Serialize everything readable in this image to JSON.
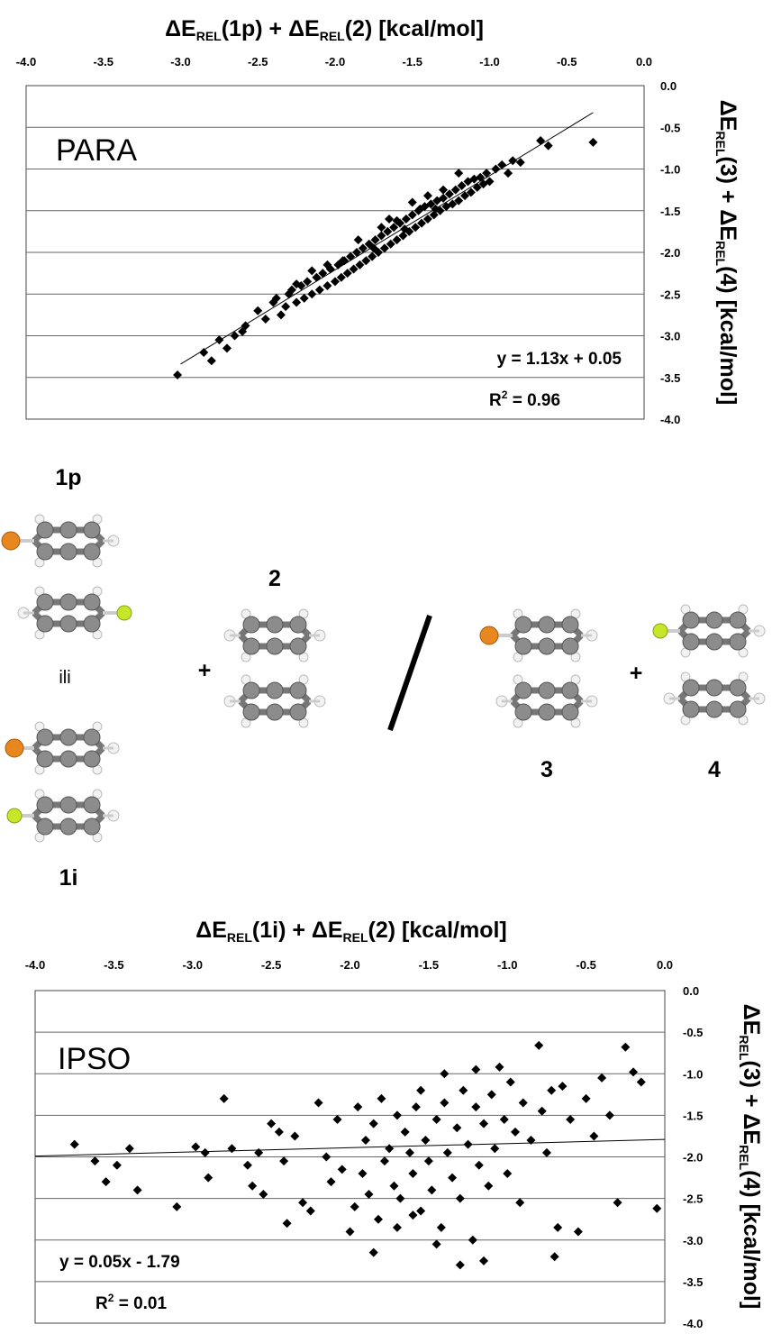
{
  "charts": [
    {
      "id": "para",
      "panel_label": "PARA",
      "xlabel": {
        "pre": "ΔE",
        "sub": "REL",
        "arg": "(1p) + ",
        "pre2": "ΔE",
        "sub2": "REL",
        "arg2": "(2) [kcal/mol]"
      },
      "ylabel": {
        "pre": "ΔE",
        "sub": "REL",
        "arg": "(3) + ",
        "pre2": "ΔE",
        "sub2": "REL",
        "arg2": "(4) [kcal/mol]"
      },
      "equation": "y = 1.13x + 0.05",
      "r2": {
        "base": "R",
        "sup": "2",
        "rest": " = 0.96"
      },
      "x_ticks": [
        "-4.0",
        "-3.5",
        "-3.0",
        "-2.5",
        "-2.0",
        "-1.5",
        "-1.0",
        "-0.5",
        "0.0"
      ],
      "y_ticks": [
        "0.0",
        "-0.5",
        "-1.0",
        "-1.5",
        "-2.0",
        "-2.5",
        "-3.0",
        "-3.5",
        "-4.0"
      ]
    },
    {
      "id": "ipso",
      "panel_label": "IPSO",
      "xlabel": {
        "pre": "ΔE",
        "sub": "REL",
        "arg": "(1i) + ",
        "pre2": "ΔE",
        "sub2": "REL",
        "arg2": "(2) [kcal/mol]"
      },
      "ylabel": {
        "pre": "ΔE",
        "sub": "REL",
        "arg": "(3) + ",
        "pre2": "ΔE",
        "sub2": "REL",
        "arg2": "(4) [kcal/mol]"
      },
      "equation": "y = 0.05x - 1.79",
      "r2": {
        "base": "R",
        "sup": "2",
        "rest": " = 0.01"
      },
      "x_ticks": [
        "-4.0",
        "-3.5",
        "-3.0",
        "-2.5",
        "-2.0",
        "-1.5",
        "-1.0",
        "-0.5",
        "0.0"
      ],
      "y_ticks": [
        "0.0",
        "-0.5",
        "-1.0",
        "-1.5",
        "-2.0",
        "-2.5",
        "-3.0",
        "-3.5",
        "-4.0"
      ]
    }
  ],
  "chart_data": [
    {
      "type": "scatter",
      "title": "",
      "xlabel": "ΔE_REL(1p) + ΔE_REL(2) [kcal/mol]",
      "ylabel": "ΔE_REL(3) + ΔE_REL(4) [kcal/mol]",
      "xlim": [
        -4.0,
        0.0
      ],
      "ylim": [
        -4.0,
        0.0
      ],
      "grid": "horizontal",
      "trendline": {
        "slope": 1.13,
        "intercept": 0.05,
        "x_range": [
          -3.0,
          -0.33
        ]
      },
      "points": [
        [
          -3.02,
          -3.47
        ],
        [
          -2.8,
          -3.3
        ],
        [
          -2.85,
          -3.2
        ],
        [
          -2.7,
          -3.15
        ],
        [
          -2.75,
          -3.05
        ],
        [
          -2.6,
          -2.95
        ],
        [
          -2.65,
          -3.0
        ],
        [
          -2.58,
          -2.88
        ],
        [
          -2.5,
          -2.7
        ],
        [
          -2.45,
          -2.8
        ],
        [
          -2.4,
          -2.6
        ],
        [
          -2.35,
          -2.75
        ],
        [
          -2.38,
          -2.55
        ],
        [
          -2.3,
          -2.5
        ],
        [
          -2.32,
          -2.65
        ],
        [
          -2.28,
          -2.45
        ],
        [
          -2.25,
          -2.6
        ],
        [
          -2.22,
          -2.4
        ],
        [
          -2.2,
          -2.55
        ],
        [
          -2.18,
          -2.35
        ],
        [
          -2.15,
          -2.5
        ],
        [
          -2.12,
          -2.3
        ],
        [
          -2.1,
          -2.45
        ],
        [
          -2.08,
          -2.25
        ],
        [
          -2.05,
          -2.4
        ],
        [
          -2.03,
          -2.2
        ],
        [
          -2.0,
          -2.35
        ],
        [
          -1.98,
          -2.15
        ],
        [
          -1.96,
          -2.3
        ],
        [
          -1.94,
          -2.1
        ],
        [
          -1.92,
          -2.25
        ],
        [
          -1.9,
          -2.05
        ],
        [
          -1.88,
          -2.2
        ],
        [
          -1.86,
          -2.0
        ],
        [
          -1.84,
          -2.15
        ],
        [
          -1.82,
          -1.95
        ],
        [
          -1.8,
          -2.1
        ],
        [
          -1.78,
          -1.9
        ],
        [
          -1.76,
          -2.05
        ],
        [
          -1.74,
          -1.85
        ],
        [
          -1.72,
          -2.0
        ],
        [
          -1.7,
          -1.8
        ],
        [
          -1.68,
          -1.95
        ],
        [
          -1.66,
          -1.75
        ],
        [
          -1.64,
          -1.9
        ],
        [
          -1.62,
          -1.7
        ],
        [
          -1.6,
          -1.85
        ],
        [
          -1.58,
          -1.65
        ],
        [
          -1.56,
          -1.8
        ],
        [
          -1.54,
          -1.6
        ],
        [
          -1.52,
          -1.75
        ],
        [
          -1.5,
          -1.55
        ],
        [
          -1.48,
          -1.7
        ],
        [
          -1.46,
          -1.5
        ],
        [
          -1.44,
          -1.65
        ],
        [
          -1.42,
          -1.45
        ],
        [
          -1.4,
          -1.6
        ],
        [
          -1.38,
          -1.42
        ],
        [
          -1.36,
          -1.55
        ],
        [
          -1.34,
          -1.38
        ],
        [
          -1.32,
          -1.5
        ],
        [
          -1.3,
          -1.35
        ],
        [
          -1.28,
          -1.45
        ],
        [
          -1.26,
          -1.3
        ],
        [
          -1.24,
          -1.42
        ],
        [
          -1.22,
          -1.25
        ],
        [
          -1.2,
          -1.38
        ],
        [
          -1.18,
          -1.2
        ],
        [
          -1.16,
          -1.32
        ],
        [
          -1.14,
          -1.15
        ],
        [
          -1.12,
          -1.28
        ],
        [
          -1.1,
          -1.12
        ],
        [
          -1.08,
          -1.22
        ],
        [
          -1.06,
          -1.1
        ],
        [
          -1.04,
          -1.18
        ],
        [
          -1.02,
          -1.05
        ],
        [
          -1.0,
          -1.15
        ],
        [
          -0.96,
          -1.0
        ],
        [
          -0.92,
          -0.95
        ],
        [
          -0.88,
          -1.05
        ],
        [
          -0.85,
          -0.9
        ],
        [
          -0.8,
          -0.92
        ],
        [
          -0.67,
          -0.66
        ],
        [
          -0.62,
          -0.72
        ],
        [
          -0.33,
          -0.68
        ],
        [
          -2.05,
          -2.15
        ],
        [
          -1.95,
          -2.1
        ],
        [
          -1.85,
          -1.85
        ],
        [
          -1.75,
          -1.95
        ],
        [
          -1.65,
          -1.6
        ],
        [
          -1.55,
          -1.72
        ],
        [
          -1.45,
          -1.48
        ],
        [
          -1.35,
          -1.48
        ],
        [
          -2.15,
          -2.22
        ],
        [
          -2.25,
          -2.38
        ],
        [
          -1.7,
          -1.7
        ],
        [
          -1.6,
          -1.62
        ],
        [
          -1.5,
          -1.4
        ],
        [
          -1.4,
          -1.32
        ],
        [
          -1.3,
          -1.25
        ],
        [
          -1.2,
          -1.05
        ]
      ]
    },
    {
      "type": "scatter",
      "title": "",
      "xlabel": "ΔE_REL(1i) + ΔE_REL(2) [kcal/mol]",
      "ylabel": "ΔE_REL(3) + ΔE_REL(4) [kcal/mol]",
      "xlim": [
        -4.0,
        0.0
      ],
      "ylim": [
        -4.0,
        0.0
      ],
      "grid": "horizontal",
      "trendline": {
        "slope": 0.05,
        "intercept": -1.79,
        "x_range": [
          -4.0,
          0.0
        ]
      },
      "points": [
        [
          -3.75,
          -1.85
        ],
        [
          -3.62,
          -2.05
        ],
        [
          -3.55,
          -2.3
        ],
        [
          -3.48,
          -2.1
        ],
        [
          -3.4,
          -1.9
        ],
        [
          -3.35,
          -2.4
        ],
        [
          -3.1,
          -2.6
        ],
        [
          -2.98,
          -1.88
        ],
        [
          -2.92,
          -1.95
        ],
        [
          -2.9,
          -2.25
        ],
        [
          -2.8,
          -1.3
        ],
        [
          -2.75,
          -1.9
        ],
        [
          -2.65,
          -2.1
        ],
        [
          -2.62,
          -2.35
        ],
        [
          -2.58,
          -1.95
        ],
        [
          -2.55,
          -2.45
        ],
        [
          -2.5,
          -1.6
        ],
        [
          -2.45,
          -1.7
        ],
        [
          -2.42,
          -2.05
        ],
        [
          -2.4,
          -2.8
        ],
        [
          -2.35,
          -1.75
        ],
        [
          -2.3,
          -2.55
        ],
        [
          -2.25,
          -2.65
        ],
        [
          -2.2,
          -1.35
        ],
        [
          -2.15,
          -2.0
        ],
        [
          -2.12,
          -2.3
        ],
        [
          -2.08,
          -1.55
        ],
        [
          -2.05,
          -2.15
        ],
        [
          -2.0,
          -2.9
        ],
        [
          -1.97,
          -2.6
        ],
        [
          -1.95,
          -1.4
        ],
        [
          -1.92,
          -2.2
        ],
        [
          -1.9,
          -1.8
        ],
        [
          -1.88,
          -2.45
        ],
        [
          -1.85,
          -1.6
        ],
        [
          -1.82,
          -2.75
        ],
        [
          -1.8,
          -1.3
        ],
        [
          -1.78,
          -2.05
        ],
        [
          -1.75,
          -1.9
        ],
        [
          -1.72,
          -2.35
        ],
        [
          -1.7,
          -1.5
        ],
        [
          -1.68,
          -2.5
        ],
        [
          -1.65,
          -1.7
        ],
        [
          -1.62,
          -1.95
        ],
        [
          -1.6,
          -2.2
        ],
        [
          -1.58,
          -1.4
        ],
        [
          -1.55,
          -2.65
        ],
        [
          -1.52,
          -1.8
        ],
        [
          -1.5,
          -2.05
        ],
        [
          -1.48,
          -2.4
        ],
        [
          -1.45,
          -1.55
        ],
        [
          -1.42,
          -2.85
        ],
        [
          -1.4,
          -1.35
        ],
        [
          -1.38,
          -1.95
        ],
        [
          -1.35,
          -2.25
        ],
        [
          -1.32,
          -1.65
        ],
        [
          -1.3,
          -2.5
        ],
        [
          -1.28,
          -1.2
        ],
        [
          -1.25,
          -1.85
        ],
        [
          -1.22,
          -3.0
        ],
        [
          -1.2,
          -1.4
        ],
        [
          -1.18,
          -2.1
        ],
        [
          -1.15,
          -1.6
        ],
        [
          -1.12,
          -2.35
        ],
        [
          -1.1,
          -1.25
        ],
        [
          -1.08,
          -1.9
        ],
        [
          -1.05,
          -0.92
        ],
        [
          -1.02,
          -1.55
        ],
        [
          -1.0,
          -2.2
        ],
        [
          -0.98,
          -1.1
        ],
        [
          -0.95,
          -1.7
        ],
        [
          -0.92,
          -2.55
        ],
        [
          -0.9,
          -1.35
        ],
        [
          -0.85,
          -1.8
        ],
        [
          -0.8,
          -0.66
        ],
        [
          -0.78,
          -1.45
        ],
        [
          -0.75,
          -1.95
        ],
        [
          -0.72,
          -1.2
        ],
        [
          -0.7,
          -3.2
        ],
        [
          -0.68,
          -2.85
        ],
        [
          -0.65,
          -1.15
        ],
        [
          -0.6,
          -1.55
        ],
        [
          -0.55,
          -2.9
        ],
        [
          -0.5,
          -1.3
        ],
        [
          -0.45,
          -1.75
        ],
        [
          -0.4,
          -1.05
        ],
        [
          -0.35,
          -1.5
        ],
        [
          -0.3,
          -2.55
        ],
        [
          -0.25,
          -0.68
        ],
        [
          -0.2,
          -0.98
        ],
        [
          -0.15,
          -1.1
        ],
        [
          -0.05,
          -2.62
        ],
        [
          -1.6,
          -2.7
        ],
        [
          -1.45,
          -3.05
        ],
        [
          -1.3,
          -3.3
        ],
        [
          -1.15,
          -3.25
        ],
        [
          -1.7,
          -2.85
        ],
        [
          -1.85,
          -3.15
        ],
        [
          -1.55,
          -1.2
        ],
        [
          -1.4,
          -1.0
        ],
        [
          -1.2,
          -0.95
        ]
      ]
    }
  ],
  "scheme": {
    "labels": {
      "l1p": "1p",
      "ili": "ili",
      "l1i": "1i",
      "l2": "2",
      "l3": "3",
      "l4": "4",
      "plus1": "+",
      "plus2": "+"
    },
    "colors": {
      "carbon": "#8c8c8c",
      "hydrogen": "#e8e8e8",
      "bromine": "#e8861f",
      "fluorine": "#c6e62a"
    }
  }
}
